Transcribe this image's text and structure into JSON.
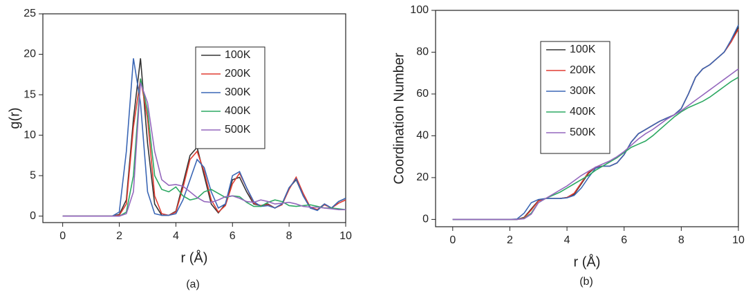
{
  "chart_data": [
    {
      "type": "line",
      "caption": "(a)",
      "x_label": "r (Å)",
      "y_label": "g(r)",
      "xlim": [
        -0.7,
        10
      ],
      "ylim": [
        -0.8,
        25
      ],
      "xticks": [
        0,
        2,
        4,
        6,
        8,
        10
      ],
      "yticks": [
        0,
        5,
        10,
        15,
        20,
        25
      ],
      "x": [
        0,
        0.25,
        0.5,
        0.75,
        1,
        1.25,
        1.5,
        1.75,
        2,
        2.25,
        2.5,
        2.75,
        3,
        3.25,
        3.5,
        3.75,
        4,
        4.25,
        4.5,
        4.75,
        5,
        5.25,
        5.5,
        5.75,
        6,
        6.25,
        6.5,
        6.75,
        7,
        7.25,
        7.5,
        7.75,
        8,
        8.25,
        8.5,
        8.75,
        9,
        9.25,
        9.5,
        9.75,
        10
      ],
      "series": [
        {
          "name": "100K",
          "color": "#333333",
          "values": [
            0,
            0,
            0,
            0,
            0,
            0,
            0,
            0,
            0.2,
            2,
            12,
            19.5,
            9,
            1.5,
            0.1,
            0.1,
            0.6,
            4,
            7.5,
            8.5,
            5,
            1.5,
            0.4,
            1.5,
            4.5,
            4.8,
            3,
            1.5,
            1.3,
            1.5,
            1,
            1.5,
            3.5,
            4.5,
            2.5,
            1,
            0.8,
            1.5,
            1,
            1.8,
            2.2
          ]
        },
        {
          "name": "200K",
          "color": "#e03c31",
          "values": [
            0,
            0,
            0,
            0,
            0,
            0,
            0,
            0,
            0.1,
            1.5,
            11,
            17,
            12,
            2.5,
            0.3,
            0.1,
            0.5,
            3.5,
            7,
            8,
            5.5,
            2,
            0.5,
            1.3,
            4,
            5.3,
            3.5,
            1.6,
            1.3,
            1.4,
            1,
            1.4,
            3.3,
            4.8,
            2.8,
            1.1,
            0.8,
            1.4,
            1,
            1.6,
            2
          ]
        },
        {
          "name": "300K",
          "color": "#3a66b5",
          "values": [
            0,
            0,
            0,
            0,
            0,
            0,
            0,
            0,
            0.5,
            8,
            19.5,
            14,
            3,
            0.3,
            0.1,
            0.1,
            0.3,
            2,
            4.5,
            7,
            6,
            3,
            1,
            1.5,
            5,
            5.5,
            3.5,
            1.8,
            1.2,
            1.3,
            1,
            1.5,
            3.5,
            4.6,
            2.5,
            1,
            0.7,
            1.5,
            1,
            1.8,
            2.2
          ]
        },
        {
          "name": "400K",
          "color": "#2ca862",
          "values": [
            0,
            0,
            0,
            0,
            0,
            0,
            0,
            0,
            0,
            0.5,
            5,
            17,
            13,
            5,
            3.3,
            3,
            3.6,
            2.5,
            2,
            2.2,
            3,
            3.3,
            2.8,
            2.3,
            2.5,
            2.4,
            1.7,
            1.2,
            1.2,
            1.7,
            2,
            1.8,
            1.3,
            1.2,
            1.3,
            1.4,
            1.2,
            1,
            1,
            0.9,
            0.8
          ]
        },
        {
          "name": "500K",
          "color": "#9467bd",
          "values": [
            0,
            0,
            0,
            0,
            0,
            0,
            0,
            0,
            0,
            0.3,
            3,
            16.5,
            14,
            8,
            4.5,
            3.8,
            3.9,
            3.7,
            3,
            2.3,
            1.8,
            1.7,
            2,
            2.4,
            2.5,
            2.2,
            1.8,
            1.7,
            2,
            1.8,
            1.5,
            1.6,
            1.7,
            1.5,
            1.2,
            1.1,
            1.1,
            1,
            0.9,
            0.8,
            0.8
          ]
        }
      ]
    },
    {
      "type": "line",
      "caption": "(b)",
      "x_label": "r (Å)",
      "y_label": "Coordination Number",
      "xlim": [
        -0.6,
        10
      ],
      "ylim": [
        -3.5,
        100
      ],
      "xticks": [
        0,
        2,
        4,
        6,
        8,
        10
      ],
      "yticks": [
        0,
        20,
        40,
        60,
        80,
        100
      ],
      "x": [
        0,
        0.25,
        0.5,
        0.75,
        1,
        1.25,
        1.5,
        1.75,
        2,
        2.25,
        2.5,
        2.75,
        3,
        3.25,
        3.5,
        3.75,
        4,
        4.25,
        4.5,
        4.75,
        5,
        5.25,
        5.5,
        5.75,
        6,
        6.25,
        6.5,
        6.75,
        7,
        7.25,
        7.5,
        7.75,
        8,
        8.25,
        8.5,
        8.75,
        9,
        9.25,
        9.5,
        9.75,
        10
      ],
      "series": [
        {
          "name": "100K",
          "color": "#333333",
          "values": [
            0,
            0,
            0,
            0,
            0,
            0,
            0,
            0,
            0,
            0,
            1,
            5,
            9,
            10,
            10,
            10,
            10.5,
            12,
            17,
            22,
            25,
            25.5,
            25.5,
            27,
            31,
            37,
            41,
            43,
            45,
            47,
            48.5,
            50,
            53,
            60,
            68,
            72,
            74,
            77,
            80,
            85,
            92
          ]
        },
        {
          "name": "200K",
          "color": "#e03c31",
          "values": [
            0,
            0,
            0,
            0,
            0,
            0,
            0,
            0,
            0,
            0,
            0.8,
            4.5,
            8.8,
            10,
            10,
            10,
            10.5,
            12.5,
            17.5,
            22.5,
            25,
            25.5,
            25.5,
            27,
            31,
            37,
            41,
            43,
            45,
            47,
            48.5,
            50,
            53,
            60,
            68,
            72,
            74,
            77,
            80,
            85,
            91
          ]
        },
        {
          "name": "300K",
          "color": "#3a66b5",
          "values": [
            0,
            0,
            0,
            0,
            0,
            0,
            0,
            0,
            0,
            0.2,
            3,
            8,
            9.5,
            10,
            10,
            10,
            10.3,
            11.5,
            15,
            20,
            24.5,
            25.5,
            25.5,
            27,
            31,
            37,
            41,
            43,
            45,
            47,
            48.5,
            50,
            53,
            60,
            68,
            72,
            74,
            77,
            80,
            86,
            93
          ]
        },
        {
          "name": "400K",
          "color": "#2ca862",
          "values": [
            0,
            0,
            0,
            0,
            0,
            0,
            0,
            0,
            0,
            0,
            0.5,
            3,
            8,
            10,
            11.5,
            13,
            15,
            17,
            19,
            21,
            23.5,
            25.5,
            27.5,
            29.5,
            32,
            34.5,
            36,
            37.5,
            40,
            43,
            46,
            49,
            51.5,
            53.5,
            55,
            56.5,
            58.5,
            61,
            63.5,
            66,
            68
          ]
        },
        {
          "name": "500K",
          "color": "#9467bd",
          "values": [
            0,
            0,
            0,
            0,
            0,
            0,
            0,
            0,
            0,
            0,
            0.3,
            2.5,
            8,
            10,
            12,
            14,
            16,
            18.5,
            21,
            23,
            25,
            26.5,
            28,
            30,
            32.5,
            35.5,
            38.5,
            41,
            43,
            45.5,
            48,
            50,
            52,
            54.5,
            57,
            59.5,
            62,
            64.5,
            67,
            69.5,
            72
          ]
        }
      ]
    }
  ]
}
